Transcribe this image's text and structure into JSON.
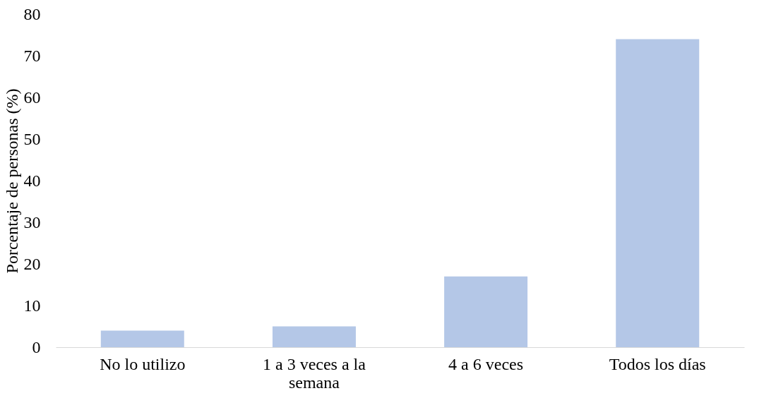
{
  "chart_data": {
    "type": "bar",
    "ylabel": "Porcentaje de personas (%)",
    "categories": [
      "No lo utilizo",
      "1 a 3 veces a la semana",
      "4 a 6 veces",
      "Todos los días"
    ],
    "values": [
      4,
      5,
      17,
      74
    ],
    "color": "#b4c7e7",
    "ylim": [
      0,
      80
    ],
    "yticks": [
      0,
      10,
      20,
      30,
      40,
      50,
      60,
      70,
      80
    ],
    "grid": false
  }
}
